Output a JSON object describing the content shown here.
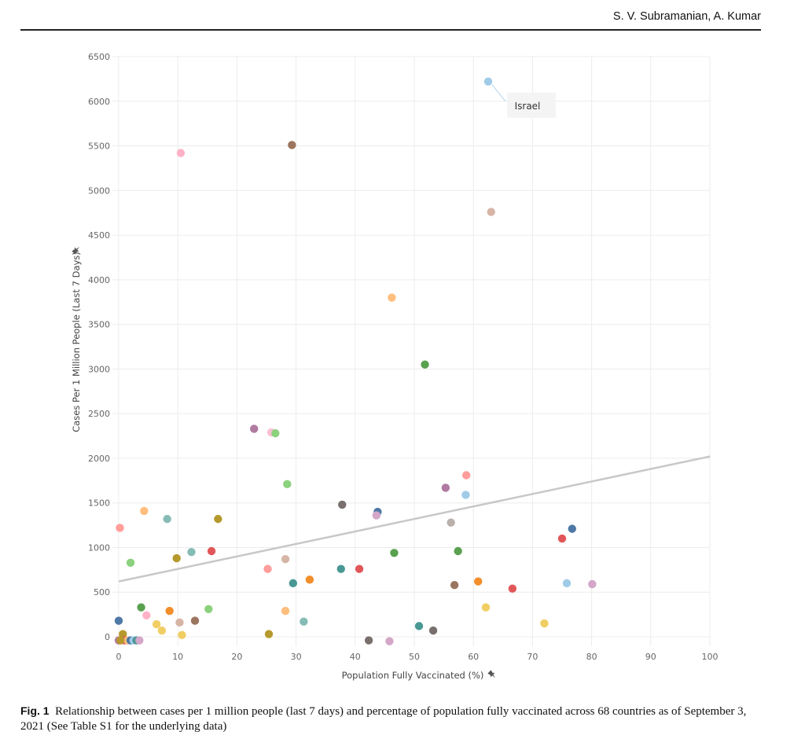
{
  "header": {
    "authors": "S. V. Subramanian, A. Kumar"
  },
  "caption": {
    "label": "Fig. 1",
    "text": "Relationship between cases per 1 million people (last 7 days) and percentage of population fully vaccinated across 68 countries as of September 3, 2021 (See Table S1 for the underlying data)"
  },
  "chart_data": {
    "type": "scatter",
    "xlabel": "Population Fully Vaccinated (%)",
    "ylabel": "Cases Per 1 Million People (Last 7 Days)",
    "xlim": [
      0,
      100
    ],
    "ylim": [
      0,
      6500
    ],
    "xticks": [
      0,
      10,
      20,
      30,
      40,
      50,
      60,
      70,
      80,
      90,
      100
    ],
    "yticks": [
      0,
      500,
      1000,
      1500,
      2000,
      2500,
      3000,
      3500,
      4000,
      4500,
      5000,
      5500,
      6000,
      6500
    ],
    "grid": true,
    "annotation": {
      "text": "Israel",
      "x": 62.5,
      "y": 6220
    },
    "trendline": {
      "x": [
        0,
        100
      ],
      "y": [
        620,
        2020
      ],
      "color": "#c8c8c8"
    },
    "points": [
      {
        "x": 62.5,
        "y": 6220,
        "color": "#a0cbe8"
      },
      {
        "x": 10.5,
        "y": 5420,
        "color": "#ffb1c7"
      },
      {
        "x": 29.3,
        "y": 5510,
        "color": "#9c755f"
      },
      {
        "x": 63.0,
        "y": 4760,
        "color": "#d7b5a6"
      },
      {
        "x": 46.2,
        "y": 3800,
        "color": "#ffbe7d"
      },
      {
        "x": 51.8,
        "y": 3050,
        "color": "#59a14f"
      },
      {
        "x": 22.9,
        "y": 2330,
        "color": "#b07aa1"
      },
      {
        "x": 25.8,
        "y": 2290,
        "color": "#fabfd2"
      },
      {
        "x": 26.5,
        "y": 2280,
        "color": "#8cd17d"
      },
      {
        "x": 28.5,
        "y": 1710,
        "color": "#8cd17d"
      },
      {
        "x": 58.8,
        "y": 1810,
        "color": "#ff9d9a"
      },
      {
        "x": 55.3,
        "y": 1670,
        "color": "#b07aa1"
      },
      {
        "x": 58.7,
        "y": 1590,
        "color": "#a0cbe8"
      },
      {
        "x": 37.8,
        "y": 1480,
        "color": "#79706e"
      },
      {
        "x": 43.8,
        "y": 1400,
        "color": "#4e79a7"
      },
      {
        "x": 43.6,
        "y": 1360,
        "color": "#d4a6c8"
      },
      {
        "x": 56.2,
        "y": 1280,
        "color": "#bab0ac"
      },
      {
        "x": 4.3,
        "y": 1410,
        "color": "#ffbe7d"
      },
      {
        "x": 8.2,
        "y": 1320,
        "color": "#86bcb6"
      },
      {
        "x": 16.8,
        "y": 1320,
        "color": "#b6992d"
      },
      {
        "x": 0.2,
        "y": 1220,
        "color": "#ff9d9a"
      },
      {
        "x": 76.7,
        "y": 1210,
        "color": "#4e79a7"
      },
      {
        "x": 75.0,
        "y": 1100,
        "color": "#e15759"
      },
      {
        "x": 12.3,
        "y": 950,
        "color": "#86bcb6"
      },
      {
        "x": 15.7,
        "y": 960,
        "color": "#e15759"
      },
      {
        "x": 46.6,
        "y": 940,
        "color": "#59a14f"
      },
      {
        "x": 57.4,
        "y": 960,
        "color": "#59a14f"
      },
      {
        "x": 9.8,
        "y": 880,
        "color": "#b6992d"
      },
      {
        "x": 28.2,
        "y": 870,
        "color": "#d7b5a6"
      },
      {
        "x": 2.0,
        "y": 830,
        "color": "#8cd17d"
      },
      {
        "x": 25.2,
        "y": 760,
        "color": "#ff9d9a"
      },
      {
        "x": 37.6,
        "y": 760,
        "color": "#499894"
      },
      {
        "x": 40.7,
        "y": 760,
        "color": "#e15759"
      },
      {
        "x": 32.3,
        "y": 640,
        "color": "#f28e2b"
      },
      {
        "x": 29.5,
        "y": 600,
        "color": "#499894"
      },
      {
        "x": 60.8,
        "y": 620,
        "color": "#f28e2b"
      },
      {
        "x": 56.8,
        "y": 580,
        "color": "#9c755f"
      },
      {
        "x": 66.6,
        "y": 540,
        "color": "#e15759"
      },
      {
        "x": 75.8,
        "y": 600,
        "color": "#a0cbe8"
      },
      {
        "x": 80.1,
        "y": 590,
        "color": "#d4a6c8"
      },
      {
        "x": 3.8,
        "y": 330,
        "color": "#59a14f"
      },
      {
        "x": 8.6,
        "y": 290,
        "color": "#f28e2b"
      },
      {
        "x": 15.2,
        "y": 310,
        "color": "#8cd17d"
      },
      {
        "x": 28.2,
        "y": 290,
        "color": "#ffbe7d"
      },
      {
        "x": 62.1,
        "y": 330,
        "color": "#f1ce63"
      },
      {
        "x": 0.0,
        "y": 180,
        "color": "#4e79a7"
      },
      {
        "x": 4.7,
        "y": 240,
        "color": "#ffb1c7"
      },
      {
        "x": 6.4,
        "y": 140,
        "color": "#f1ce63"
      },
      {
        "x": 10.3,
        "y": 160,
        "color": "#d7b5a6"
      },
      {
        "x": 12.9,
        "y": 180,
        "color": "#9c755f"
      },
      {
        "x": 31.3,
        "y": 170,
        "color": "#86bcb6"
      },
      {
        "x": 72.0,
        "y": 150,
        "color": "#f1ce63"
      },
      {
        "x": 7.3,
        "y": 70,
        "color": "#f1ce63"
      },
      {
        "x": 50.8,
        "y": 120,
        "color": "#499894"
      },
      {
        "x": 53.2,
        "y": 70,
        "color": "#79706e"
      },
      {
        "x": 0.7,
        "y": 30,
        "color": "#b6992d"
      },
      {
        "x": 10.7,
        "y": 20,
        "color": "#f1ce63"
      },
      {
        "x": 25.4,
        "y": 30,
        "color": "#b6992d"
      },
      {
        "x": 0.0,
        "y": -40,
        "color": "#b07aa1"
      },
      {
        "x": 1.0,
        "y": -40,
        "color": "#e15759"
      },
      {
        "x": 1.5,
        "y": -40,
        "color": "#ffbe7d"
      },
      {
        "x": 2.0,
        "y": -40,
        "color": "#4e79a7"
      },
      {
        "x": 2.5,
        "y": -40,
        "color": "#a0cbe8"
      },
      {
        "x": 3.0,
        "y": -40,
        "color": "#499894"
      },
      {
        "x": 3.5,
        "y": -40,
        "color": "#d4a6c8"
      },
      {
        "x": 42.3,
        "y": -40,
        "color": "#79706e"
      },
      {
        "x": 45.8,
        "y": -50,
        "color": "#d4a6c8"
      },
      {
        "x": 0.3,
        "y": -40,
        "color": "#b6992d"
      }
    ]
  }
}
